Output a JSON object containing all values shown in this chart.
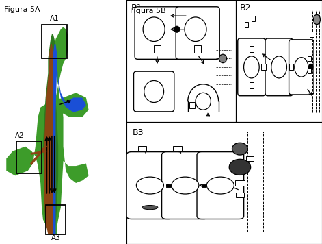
{
  "title_5A": "Figura 5A",
  "title_5B": "Figura 5B",
  "label_A1": "A1",
  "label_A2": "A2",
  "label_A3": "A3",
  "label_B1": "B1",
  "label_B2": "B2",
  "label_B3": "B3",
  "bg_color": "#ffffff",
  "green_dark": "#2d7a1f",
  "green_mid": "#3d9c2a",
  "green_light": "#5ab832",
  "brown_color": "#8B4513",
  "blue_color": "#1a4fd6",
  "black": "#000000"
}
